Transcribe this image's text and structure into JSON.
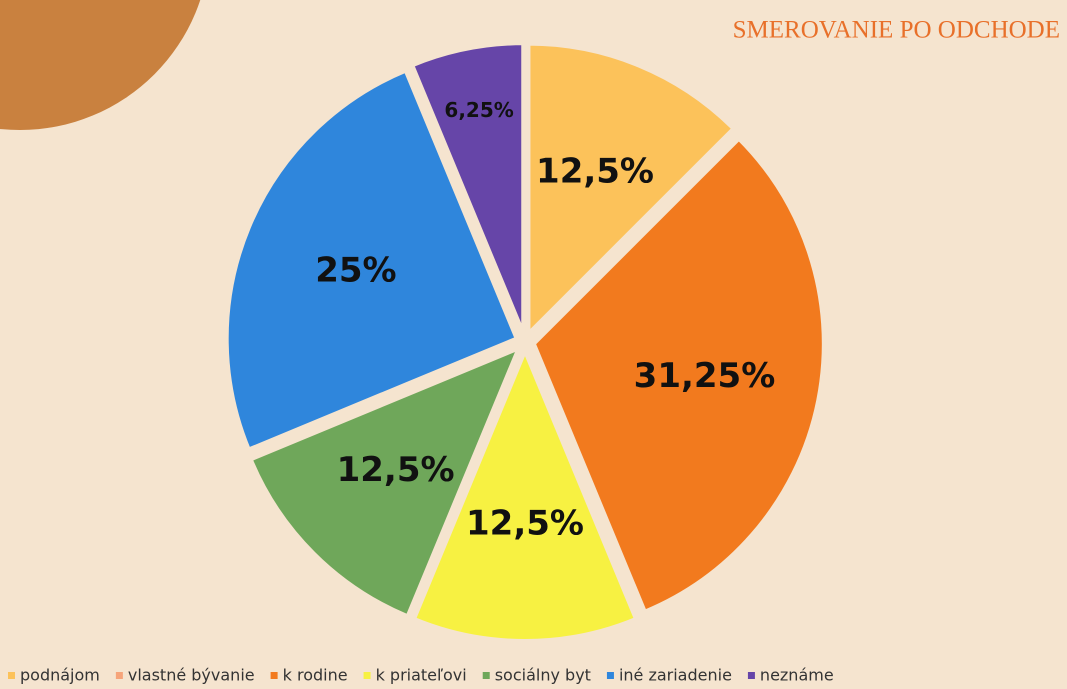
{
  "chart_data": {
    "type": "pie",
    "title": "SMEROVANIE PO ODCHODE",
    "categories": [
      "podnájom",
      "vlastné bývanie",
      "k rodine",
      "k priateľovi",
      "sociálny byt",
      "iné zariadenie",
      "neznáme"
    ],
    "values": [
      12.5,
      0,
      31.25,
      12.5,
      12.5,
      25,
      6.25
    ],
    "value_labels": [
      "12,5%",
      null,
      "31,25%",
      "12,5%",
      "12,5%",
      "25%",
      "6,25%"
    ],
    "colors": [
      "#fcc25a",
      "#f6a47a",
      "#f27a1e",
      "#f7f142",
      "#6fa75a",
      "#2f86dc",
      "#6645a8"
    ],
    "legend": "bottom"
  }
}
